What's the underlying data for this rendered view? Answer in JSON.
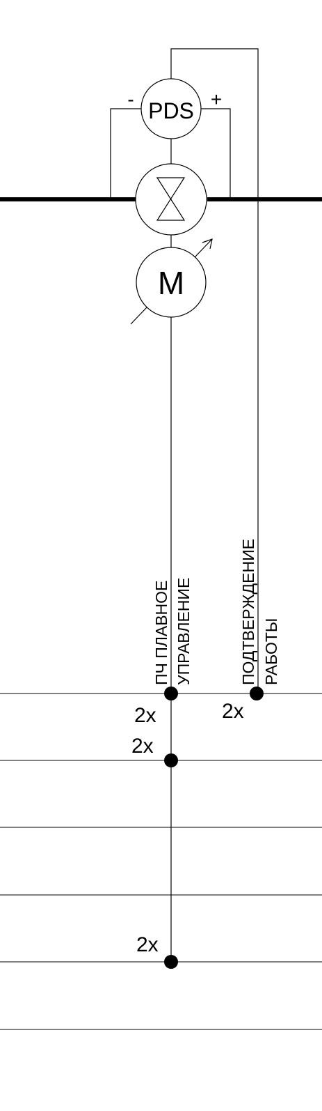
{
  "symbols": {
    "pds_label": "PDS",
    "pds_minus": "-",
    "pds_plus": "+",
    "motor_label": "M"
  },
  "signals": {
    "drive_line1": "ПЧ ПЛАВНОЕ",
    "drive_line2": "УПРАВЛЕНИЕ",
    "confirm_line1": "ПОДТВЕРЖДЕНИЕ",
    "confirm_line2": "РАБОТЫ"
  },
  "multiplicity": {
    "row1_drive": "2x",
    "row1_confirm": "2x",
    "row2_drive": "2x",
    "row5_drive": "2x"
  },
  "colors": {
    "line": "#000000",
    "background": "#ffffff"
  }
}
